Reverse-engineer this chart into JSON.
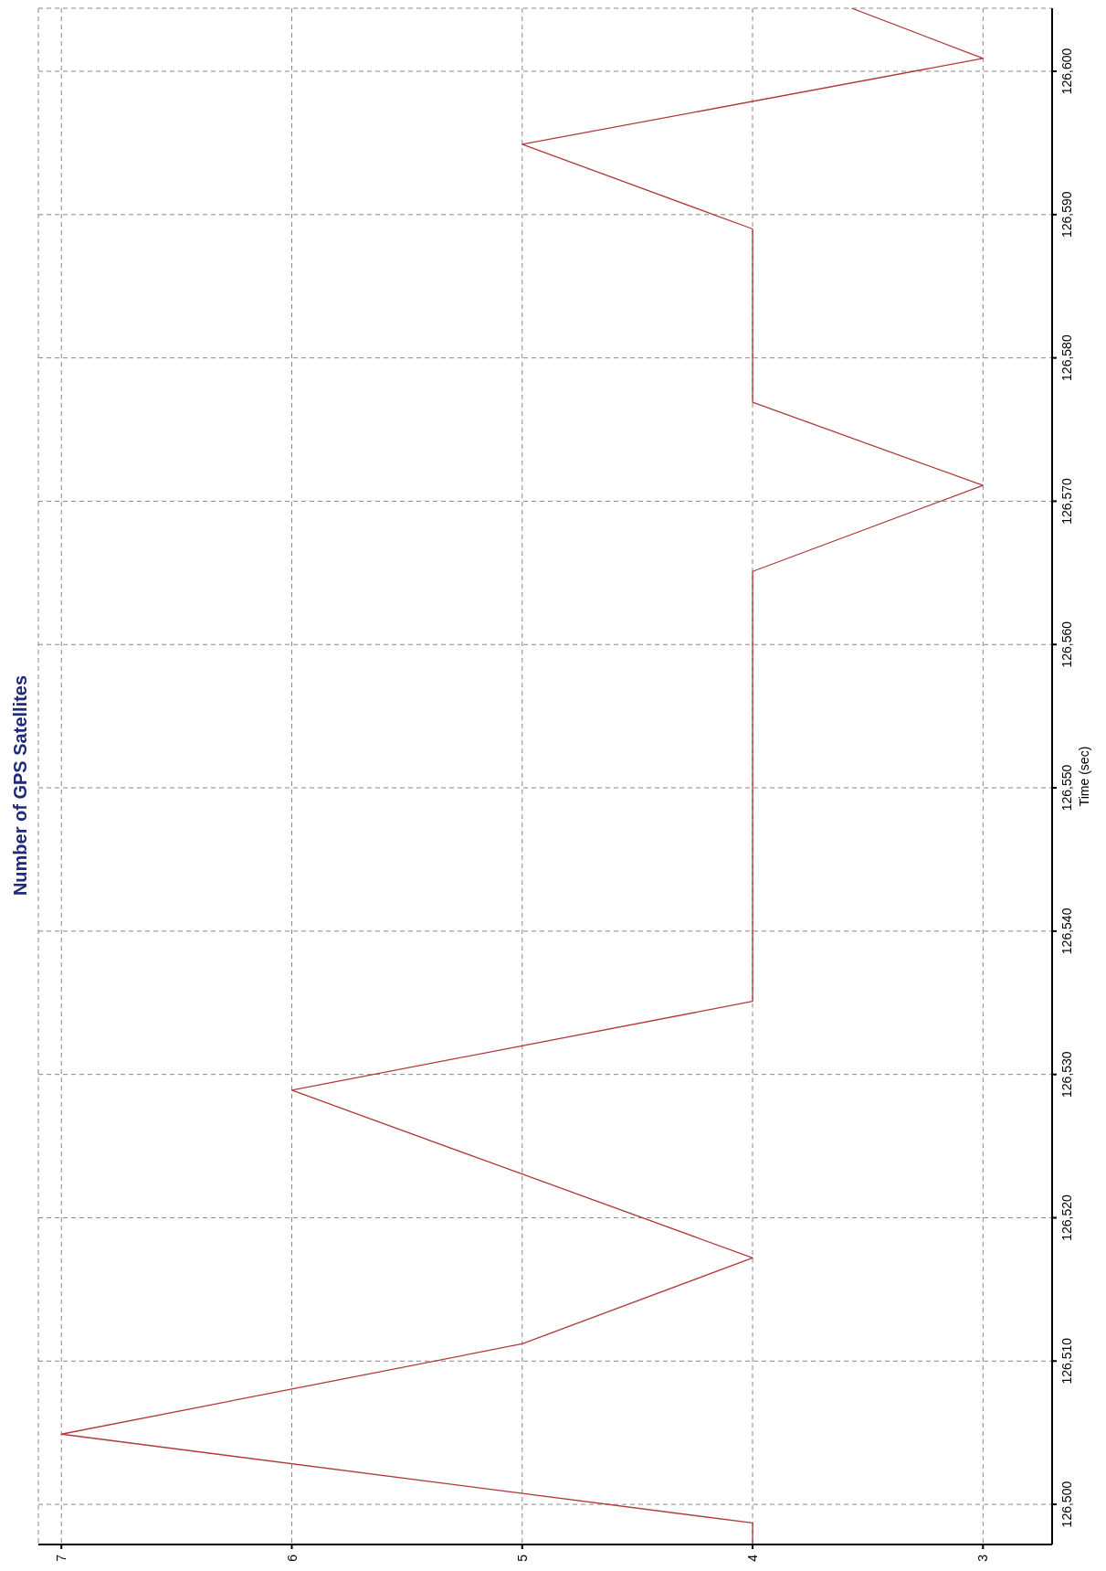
{
  "chart_data": {
    "type": "line",
    "title": "Number of GPS Satellites",
    "ylabel": "Time (sec)",
    "x": [
      4,
      4,
      7,
      5,
      4,
      6,
      4,
      4,
      3,
      4,
      4,
      5,
      3,
      3.57
    ],
    "series": [
      {
        "color": "#b03a3a",
        "values": [
          126497.2,
          126498.7,
          126504.9,
          126511.2,
          126517.2,
          126528.9,
          126535.1,
          126565.1,
          126571.1,
          126576.9,
          126589,
          126594.9,
          126600.9,
          126604.4
        ]
      }
    ],
    "xlim": [
      7.1,
      2.7
    ],
    "xticks": [
      7,
      6,
      5,
      4,
      3
    ],
    "ylim": [
      126497.2,
      126604.4
    ],
    "yticks": [
      {
        "value": 126500,
        "label": "126,500"
      },
      {
        "value": 126510,
        "label": "126,510"
      },
      {
        "value": 126520,
        "label": "126,520"
      },
      {
        "value": 126530,
        "label": "126,530"
      },
      {
        "value": 126540,
        "label": "126,540"
      },
      {
        "value": 126550,
        "label": "126,550"
      },
      {
        "value": 126560,
        "label": "126,560"
      },
      {
        "value": 126570,
        "label": "126,570"
      },
      {
        "value": 126580,
        "label": "126,580"
      },
      {
        "value": 126590,
        "label": "126,590"
      },
      {
        "value": 126600,
        "label": "126,600"
      }
    ],
    "grid": true,
    "marker": "none",
    "line_style": "solid",
    "legend": false
  }
}
